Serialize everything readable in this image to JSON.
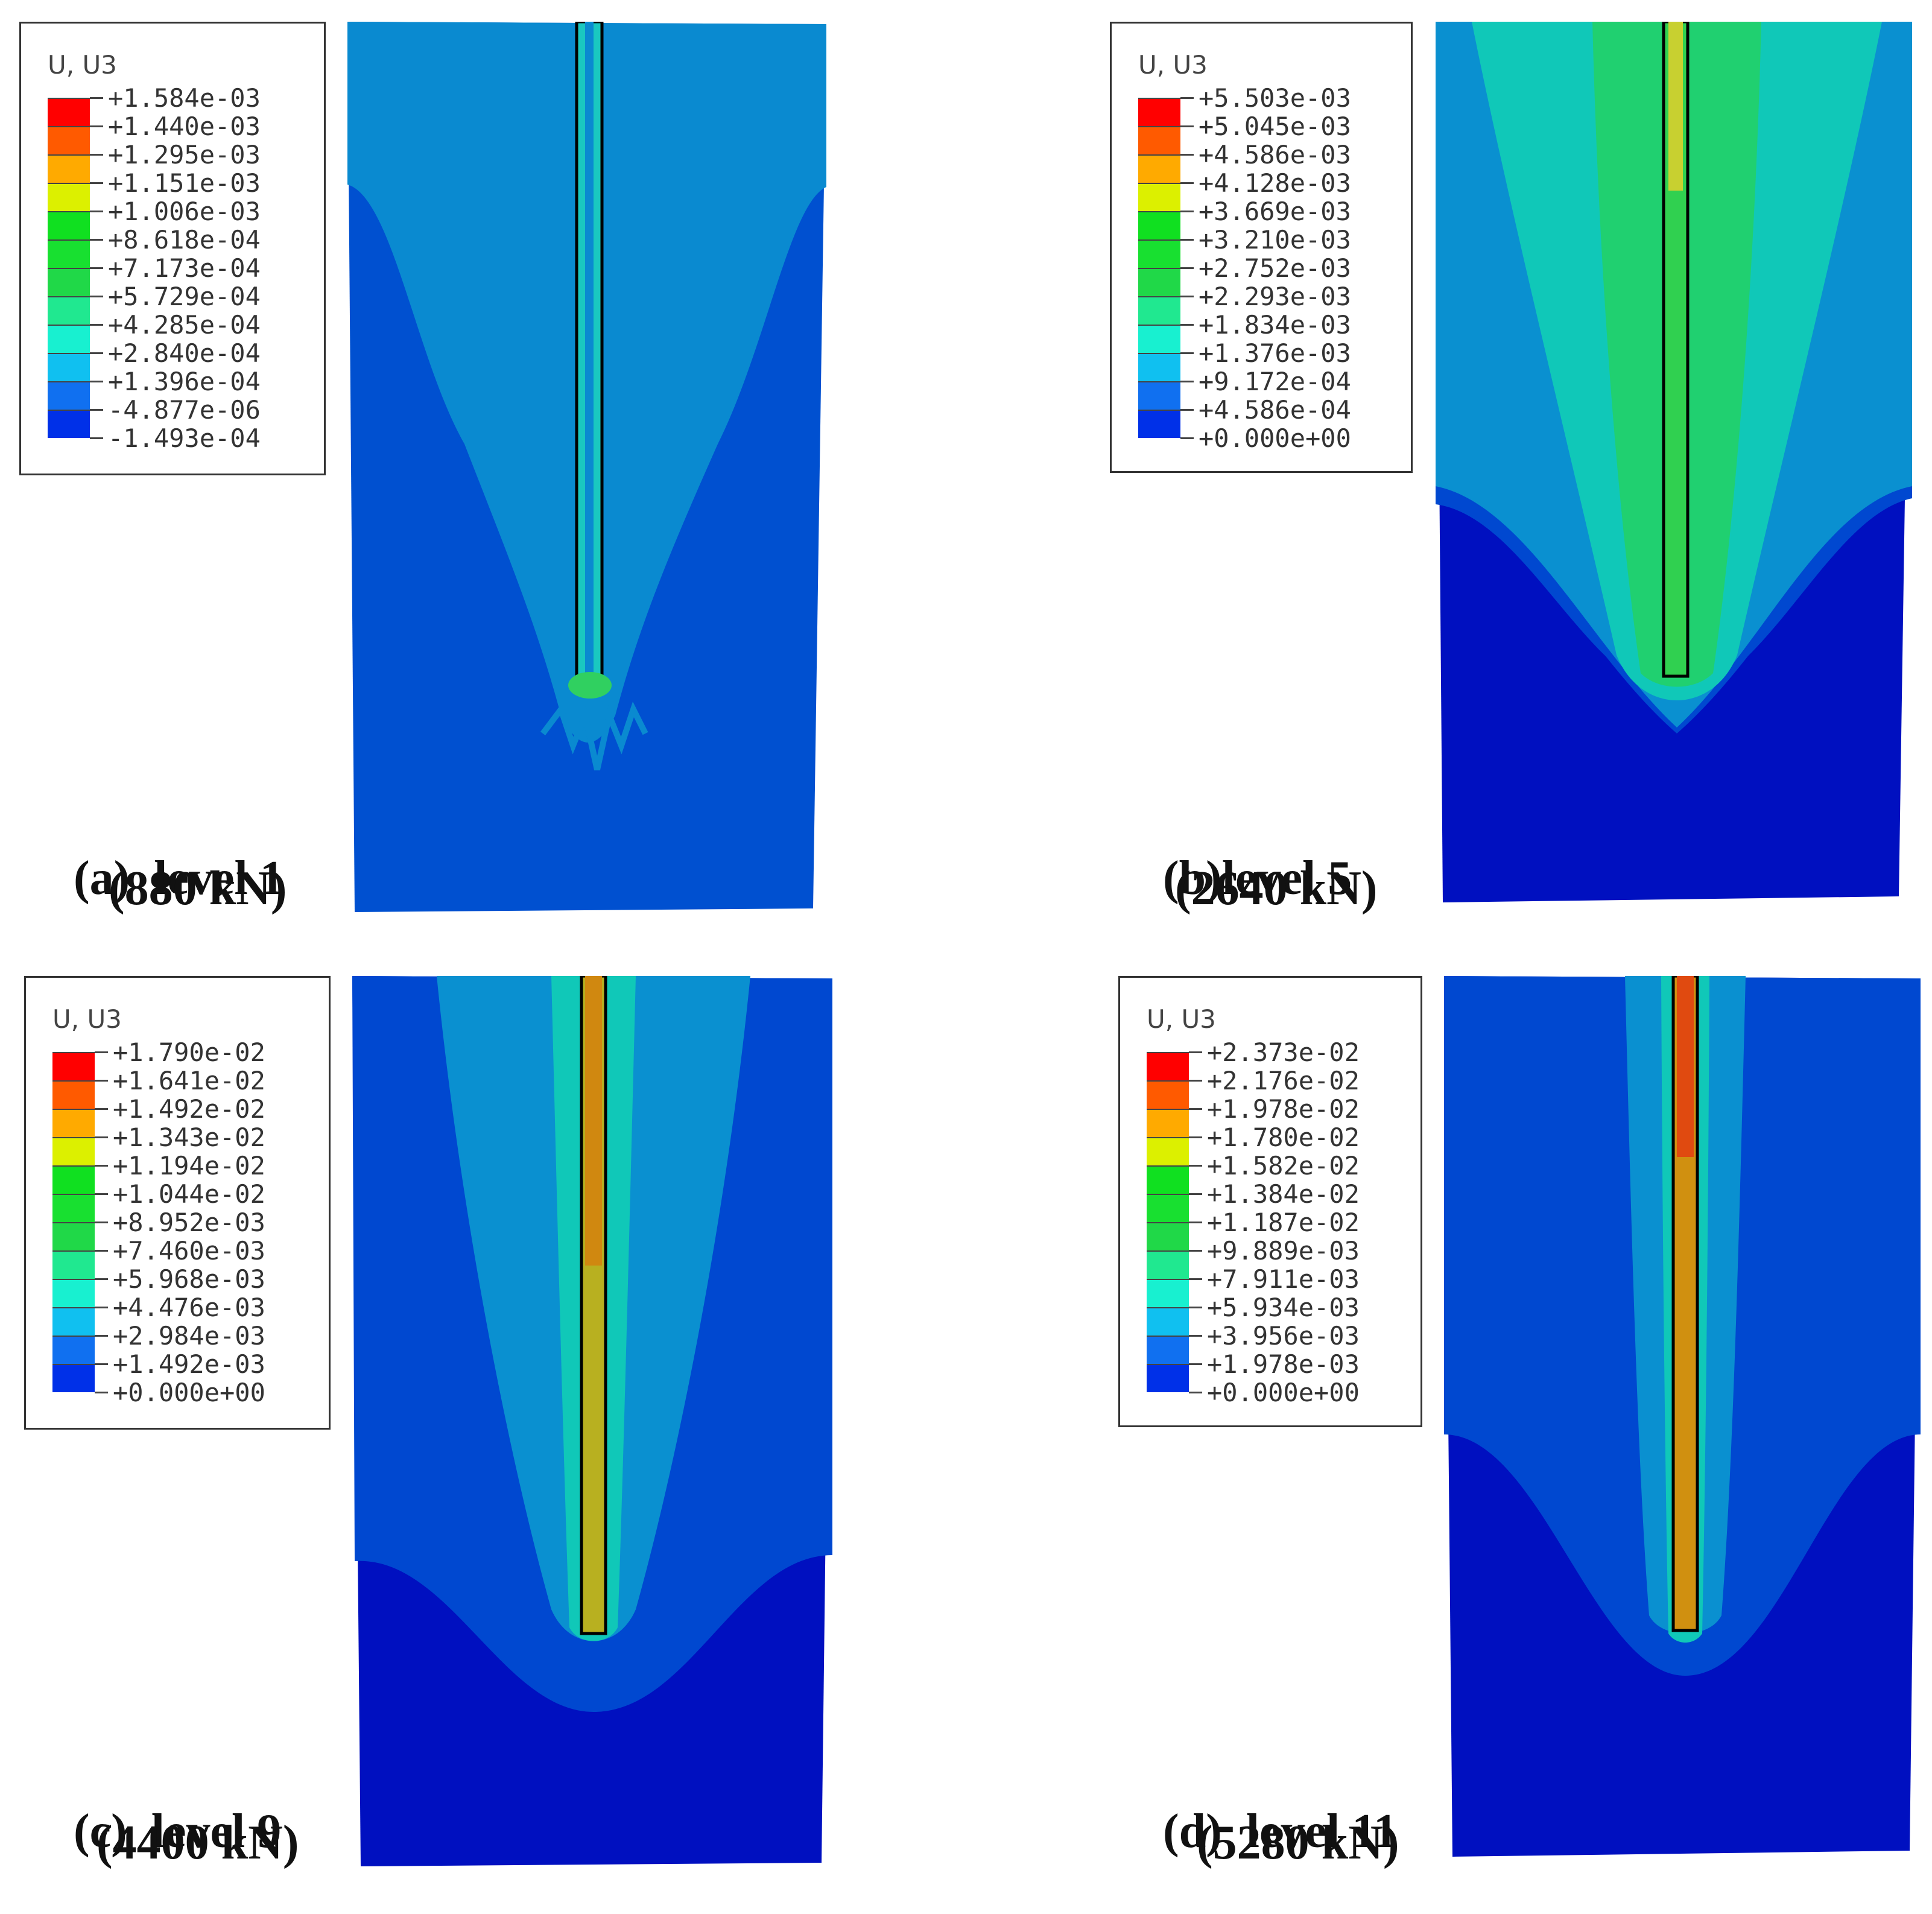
{
  "panels": [
    {
      "id": "a",
      "legend_title": "U, U3",
      "legend_values": [
        "+1.584e-03",
        "+1.440e-03",
        "+1.295e-03",
        "+1.151e-03",
        "+1.006e-03",
        "+8.618e-04",
        "+7.173e-04",
        "+5.729e-04",
        "+4.285e-04",
        "+2.840e-04",
        "+1.396e-04",
        "-4.877e-06",
        "-1.493e-04"
      ],
      "caption_label": "(a)",
      "caption_level": "level 1",
      "caption_load": "(880 kN)",
      "field_colors": {
        "background": "#0050d0",
        "plume": "#0a8ad0",
        "pile": "#1ac8c0",
        "tip": "#30d060"
      }
    },
    {
      "id": "b",
      "legend_title": "U, U3",
      "legend_values": [
        "+5.503e-03",
        "+5.045e-03",
        "+4.586e-03",
        "+4.128e-03",
        "+3.669e-03",
        "+3.210e-03",
        "+2.752e-03",
        "+2.293e-03",
        "+1.834e-03",
        "+1.376e-03",
        "+9.172e-04",
        "+4.586e-04",
        "+0.000e+00"
      ],
      "caption_label": "(b)",
      "caption_level": "level 5",
      "caption_load": "(2640 kN)",
      "field_colors": {
        "background": "#0010c0",
        "band": "#0048d0",
        "outer": "#0a90d0",
        "plume": "#10c8b8",
        "inner": "#20d070",
        "pile": "#30d050",
        "pile_top": "#c8d030"
      }
    },
    {
      "id": "c",
      "legend_title": "U, U3",
      "legend_values": [
        "+1.790e-02",
        "+1.641e-02",
        "+1.492e-02",
        "+1.343e-02",
        "+1.194e-02",
        "+1.044e-02",
        "+8.952e-03",
        "+7.460e-03",
        "+5.968e-03",
        "+4.476e-03",
        "+2.984e-03",
        "+1.492e-03",
        "+0.000e+00"
      ],
      "caption_label": "(c)",
      "caption_level": "level 9",
      "caption_load": "(4400 kN)",
      "field_colors": {
        "background": "#0010c0",
        "band": "#0048d0",
        "outer": "#0a90d0",
        "plume": "#10c8b8",
        "pile": "#b8b020",
        "pile_top": "#d08810"
      }
    },
    {
      "id": "d",
      "legend_title": "U, U3",
      "legend_values": [
        "+2.373e-02",
        "+2.176e-02",
        "+1.978e-02",
        "+1.780e-02",
        "+1.582e-02",
        "+1.384e-02",
        "+1.187e-02",
        "+9.889e-03",
        "+7.911e-03",
        "+5.934e-03",
        "+3.956e-03",
        "+1.978e-03",
        "+0.000e+00"
      ],
      "caption_label": "(d)",
      "caption_level": "level 11",
      "caption_load": "(5280 kN)",
      "field_colors": {
        "background": "#0010c0",
        "band": "#0048d0",
        "outer": "#0a90d0",
        "plume": "#10c8b8",
        "pile": "#d09010",
        "pile_top": "#e04a10"
      }
    }
  ],
  "colorbar": [
    "#ff0000",
    "#ff5a00",
    "#ffaa00",
    "#dcf000",
    "#10e020",
    "#18e030",
    "#20d848",
    "#20e890",
    "#18f0d0",
    "#10c0f0",
    "#1070f0",
    "#0030e8"
  ]
}
